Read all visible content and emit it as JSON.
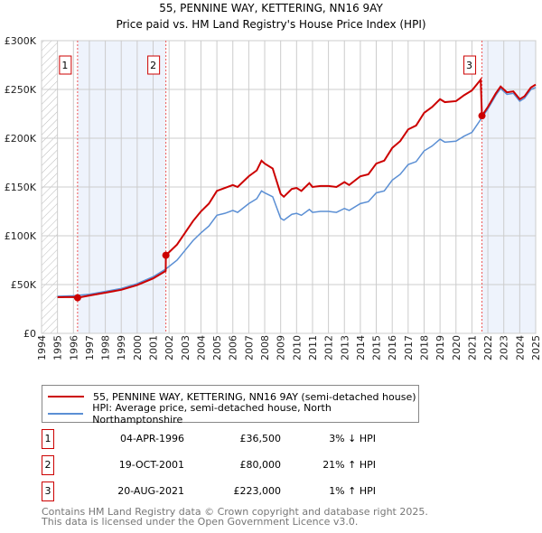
{
  "chart_data": {
    "type": "line",
    "title": "55, PENNINE WAY, KETTERING, NN16 9AY",
    "subtitle": "Price paid vs. HM Land Registry's House Price Index (HPI)",
    "xlim": [
      1994,
      2025
    ],
    "ylim": [
      0,
      300000
    ],
    "x_ticks": [
      "1994",
      "1995",
      "1996",
      "1997",
      "1998",
      "1999",
      "2000",
      "2001",
      "2002",
      "2003",
      "2004",
      "2005",
      "2006",
      "2007",
      "2008",
      "2009",
      "2010",
      "2011",
      "2012",
      "2013",
      "2014",
      "2015",
      "2016",
      "2017",
      "2018",
      "2019",
      "2020",
      "2021",
      "2022",
      "2023",
      "2024",
      "2025"
    ],
    "y_ticks": [
      {
        "v": 0,
        "label": "£0"
      },
      {
        "v": 50000,
        "label": "£50K"
      },
      {
        "v": 100000,
        "label": "£100K"
      },
      {
        "v": 150000,
        "label": "£150K"
      },
      {
        "v": 200000,
        "label": "£200K"
      },
      {
        "v": 250000,
        "label": "£250K"
      },
      {
        "v": 300000,
        "label": "£300K"
      }
    ],
    "grid": true,
    "series": [
      {
        "name": "55, PENNINE WAY, KETTERING, NN16 9AY (semi-detached house)",
        "color": "#cc0000",
        "x": [
          1995,
          1996,
          1996.26,
          1997,
          1998,
          1999,
          2000,
          2001,
          2001.79,
          2001.8,
          2002.5,
          2003,
          2003.5,
          2004,
          2004.5,
          2005,
          2005.5,
          2006,
          2006.3,
          2007,
          2007.5,
          2007.8,
          2008,
          2008.5,
          2009,
          2009.2,
          2009.7,
          2010,
          2010.3,
          2010.8,
          2011,
          2011.5,
          2012,
          2012.5,
          2013,
          2013.3,
          2014,
          2014.5,
          2015,
          2015.5,
          2016,
          2016.5,
          2017,
          2017.5,
          2018,
          2018.5,
          2019,
          2019.3,
          2020,
          2020.5,
          2021,
          2021.55,
          2021.63,
          2022,
          2022.5,
          2022.8,
          2023.2,
          2023.6,
          2024,
          2024.3,
          2024.7,
          2025
        ],
        "y": [
          37000,
          37300,
          36500,
          38800,
          41700,
          44600,
          49500,
          56300,
          64000,
          80000,
          91000,
          103000,
          115000,
          125000,
          133000,
          146000,
          149000,
          152000,
          150000,
          161000,
          167000,
          177000,
          174000,
          169000,
          143000,
          140000,
          148000,
          149000,
          146000,
          154000,
          150000,
          151000,
          151000,
          150000,
          155000,
          152000,
          161000,
          163000,
          174000,
          177000,
          190000,
          197000,
          209000,
          213000,
          226000,
          232000,
          240000,
          237000,
          238000,
          244000,
          249000,
          260000,
          223000,
          232000,
          246000,
          253000,
          247000,
          248000,
          240000,
          243000,
          252000,
          255000
        ]
      },
      {
        "name": "HPI: Average price, semi-detached house, North Northamptonshire",
        "color": "#5b8fd4",
        "x": [
          1995,
          1996,
          1997,
          1998,
          1999,
          2000,
          2001,
          2001.8,
          2002.5,
          2003,
          2003.5,
          2004,
          2004.5,
          2005,
          2005.5,
          2006,
          2006.3,
          2007,
          2007.5,
          2007.8,
          2008,
          2008.5,
          2009,
          2009.2,
          2009.7,
          2010,
          2010.3,
          2010.8,
          2011,
          2011.5,
          2012,
          2012.5,
          2013,
          2013.3,
          2014,
          2014.5,
          2015,
          2015.5,
          2016,
          2016.5,
          2017,
          2017.5,
          2018,
          2018.5,
          2019,
          2019.3,
          2020,
          2020.5,
          2021,
          2021.5,
          2022,
          2022.5,
          2022.8,
          2023.2,
          2023.6,
          2024,
          2024.3,
          2024.7,
          2025
        ],
        "y": [
          38000,
          38500,
          40000,
          43000,
          46000,
          51000,
          58000,
          66000,
          75000,
          85000,
          95000,
          103000,
          110000,
          121000,
          123000,
          126000,
          124000,
          133000,
          138000,
          146000,
          144000,
          140000,
          118000,
          116000,
          122000,
          123000,
          121000,
          127000,
          124000,
          125000,
          125000,
          124000,
          128000,
          126000,
          133000,
          135000,
          144000,
          146000,
          157000,
          163000,
          173000,
          176000,
          187000,
          192000,
          199000,
          196000,
          197000,
          202000,
          206000,
          218000,
          230000,
          244000,
          251000,
          245000,
          246000,
          238000,
          241000,
          250000,
          252000
        ]
      }
    ],
    "sales": [
      {
        "label": "1",
        "x": 1996.26,
        "price": 36500,
        "date": "04-APR-1996",
        "price_text": "£36,500",
        "hpi_text": "3% ↓ HPI"
      },
      {
        "label": "2",
        "x": 2001.8,
        "price": 80000,
        "date": "19-OCT-2001",
        "price_text": "£80,000",
        "hpi_text": "21% ↑ HPI"
      },
      {
        "label": "3",
        "x": 2021.63,
        "price": 223000,
        "date": "20-AUG-2021",
        "price_text": "£223,000",
        "hpi_text": "1% ↑ HPI"
      }
    ],
    "legend_position": "bottom"
  },
  "footer": [
    "Contains HM Land Registry data © Crown copyright and database right 2025.",
    "This data is licensed under the Open Government Licence v3.0."
  ]
}
